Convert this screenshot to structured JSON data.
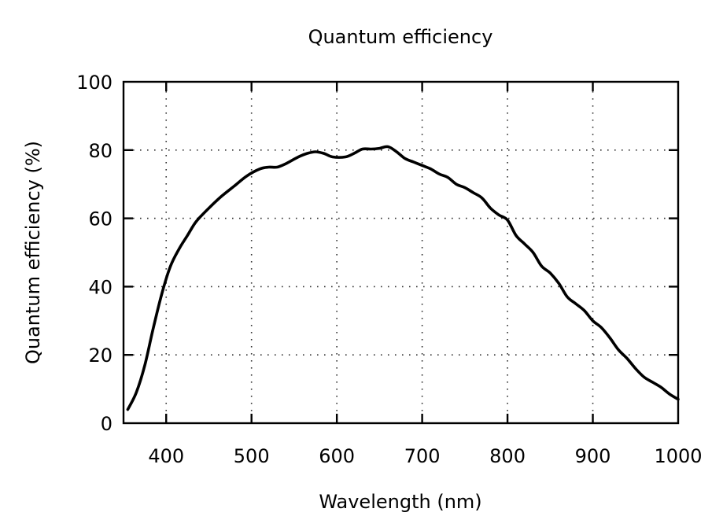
{
  "chart_data": {
    "type": "line",
    "title": "Quantum efficiency",
    "xlabel": "Wavelength (nm)",
    "ylabel": "Quantum efficiency (%)",
    "xlim": [
      350,
      1000
    ],
    "ylim": [
      0,
      100
    ],
    "xticks": [
      400,
      500,
      600,
      700,
      800,
      900,
      1000
    ],
    "yticks": [
      0,
      20,
      40,
      60,
      80,
      100
    ],
    "xtick_labels": [
      "400",
      "500",
      "600",
      "700",
      "800",
      "900",
      "1000"
    ],
    "ytick_labels": [
      "0",
      "20",
      "40",
      "60",
      "80",
      "100"
    ],
    "grid": true,
    "legend": null,
    "series": [
      {
        "name": "Quantum efficiency",
        "color": "#000000",
        "x": [
          355,
          365,
          375,
          385,
          395,
          405,
          415,
          425,
          435,
          450,
          465,
          480,
          495,
          510,
          520,
          530,
          540,
          555,
          565,
          575,
          585,
          595,
          610,
          620,
          630,
          640,
          650,
          660,
          670,
          680,
          690,
          700,
          710,
          720,
          730,
          740,
          750,
          760,
          770,
          780,
          790,
          800,
          810,
          820,
          830,
          840,
          850,
          860,
          870,
          880,
          890,
          900,
          910,
          920,
          930,
          940,
          950,
          960,
          970,
          980,
          990,
          1000
        ],
        "y": [
          4,
          9,
          17,
          28,
          38,
          46,
          51,
          55,
          59,
          63,
          66.5,
          69.5,
          72.5,
          74.5,
          75,
          75,
          76,
          78,
          79,
          79.5,
          79,
          78,
          78,
          79,
          80.3,
          80.3,
          80.5,
          81,
          79.5,
          77.5,
          76.5,
          75.5,
          74.5,
          73,
          72,
          70,
          69,
          67.5,
          66,
          63,
          61,
          59.5,
          55,
          52.5,
          50,
          46,
          44,
          41,
          37,
          35,
          33,
          30,
          28,
          25,
          21.5,
          19,
          16,
          13.5,
          12,
          10.5,
          8.5,
          7
        ]
      }
    ]
  }
}
